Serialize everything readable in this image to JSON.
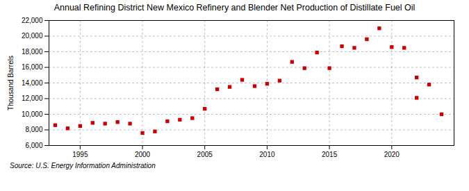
{
  "chart_data": {
    "type": "scatter",
    "title": "Annual Refining District New Mexico Refinery and Blender Net Production of Distillate Fuel Oil",
    "ylabel": "Thousand Barrels",
    "source": "Source: U.S. Energy Information Administration",
    "x": [
      1993,
      1994,
      1995,
      1996,
      1997,
      1998,
      1999,
      2000,
      2001,
      2002,
      2003,
      2004,
      2005,
      2006,
      2007,
      2008,
      2009,
      2010,
      2011,
      2012,
      2013,
      2014,
      2015,
      2016,
      2017,
      2018,
      2019,
      2020,
      2021,
      2022,
      2022,
      2023,
      2024
    ],
    "values": [
      8600,
      8200,
      8500,
      8900,
      8800,
      9000,
      8800,
      7600,
      7800,
      9100,
      9300,
      9500,
      10700,
      13200,
      13500,
      14400,
      13600,
      13900,
      14300,
      16700,
      15900,
      17900,
      15900,
      18700,
      18500,
      19600,
      21000,
      18600,
      18500,
      14700,
      12100,
      13800,
      10000
    ],
    "color": "#cc0000",
    "marker": "square",
    "xlim": [
      1992.5,
      2025
    ],
    "xticks": [
      1995,
      2000,
      2005,
      2010,
      2015,
      2020
    ],
    "ylim": [
      6000,
      22000
    ],
    "yticks": [
      {
        "value": 6000,
        "label": "6,000"
      },
      {
        "value": 8000,
        "label": "8,000"
      },
      {
        "value": 10000,
        "label": "10,000"
      },
      {
        "value": 12000,
        "label": "12,000"
      },
      {
        "value": 14000,
        "label": "14,000"
      },
      {
        "value": 16000,
        "label": "16,000"
      },
      {
        "value": 18000,
        "label": "18,000"
      },
      {
        "value": 20000,
        "label": "20,000"
      },
      {
        "value": 22000,
        "label": "22,000"
      }
    ],
    "grid": true
  }
}
